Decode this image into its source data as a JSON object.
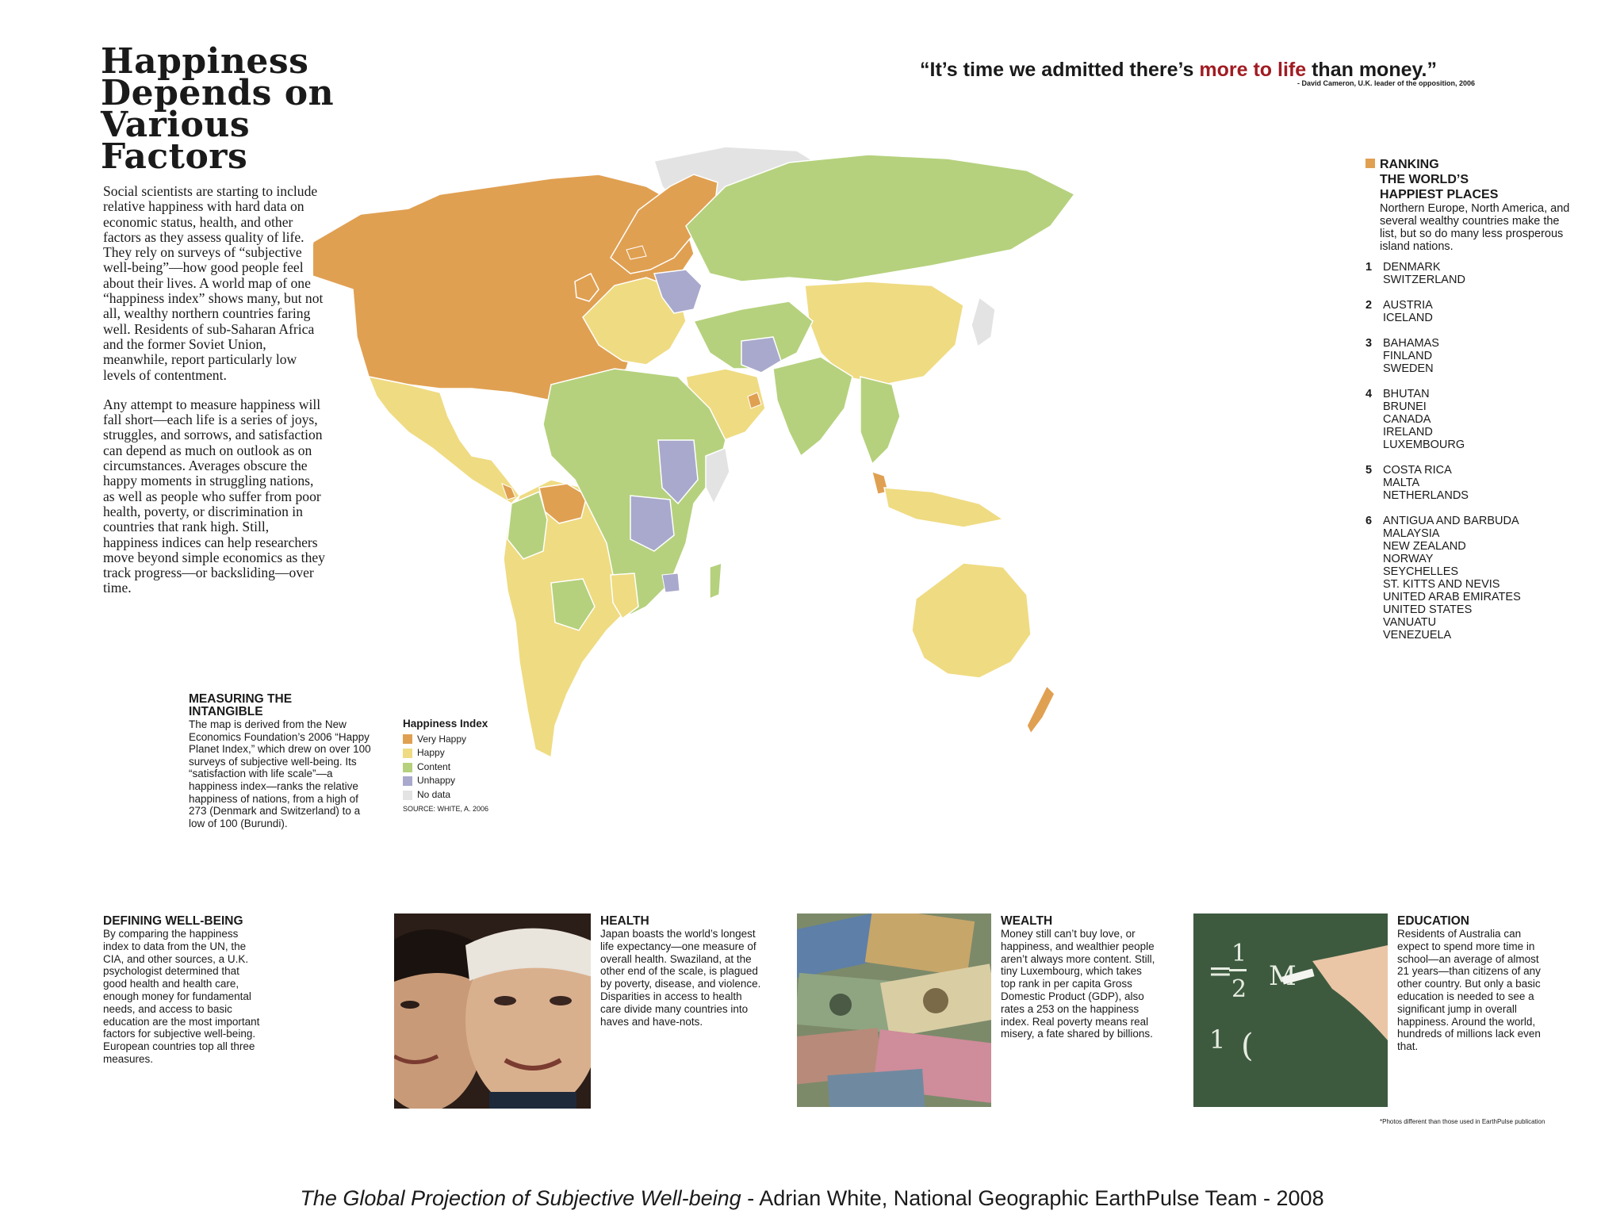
{
  "title_lines": [
    "Happiness",
    "Depends on",
    "Various",
    "Factors"
  ],
  "intro": {
    "p1": "Social scientists are starting to include relative happiness with hard data on economic status, health, and other factors as they assess quality of life. They rely on surveys of “subjective well-being”—how good people feel about their lives. A world map of one “happiness index” shows many, but not all, wealthy northern countries faring well. Residents of sub-Saharan Africa and the former Soviet Union, meanwhile, report particularly low levels of contentment.",
    "p2": "Any attempt to measure happiness will fall short—each life is a series of joys, struggles, and sorrows, and satisfaction can depend as much on outlook as on circumstances. Averages obscure the happy moments in struggling nations, as well as people who suffer from poor health, poverty, or discrimination in countries that rank high. Still, happiness indices can help researchers move beyond simple economics as they track progress—or backsliding—over time."
  },
  "quote": {
    "before": "“It’s time we admitted there’s ",
    "highlight": "more to life",
    "after": " than money.”",
    "attribution": "- David Cameron, U.K. leader of the opposition, 2006"
  },
  "ranking": {
    "heading_lines": [
      "RANKING",
      "THE WORLD’S",
      "HAPPIEST PLACES"
    ],
    "description": "Northern Europe, North America, and several wealthy countries make the list, but so do many less prosperous island nations.",
    "groups": [
      {
        "rank": "1",
        "countries": [
          "DENMARK",
          "SWITZERLAND"
        ]
      },
      {
        "rank": "2",
        "countries": [
          "AUSTRIA",
          "ICELAND"
        ]
      },
      {
        "rank": "3",
        "countries": [
          "BAHAMAS",
          "FINLAND",
          "SWEDEN"
        ]
      },
      {
        "rank": "4",
        "countries": [
          "BHUTAN",
          "BRUNEI",
          "CANADA",
          "IRELAND",
          "LUXEMBOURG"
        ]
      },
      {
        "rank": "5",
        "countries": [
          "COSTA RICA",
          "MALTA",
          "NETHERLANDS"
        ]
      },
      {
        "rank": "6",
        "countries": [
          "ANTIGUA AND BARBUDA",
          "MALAYSIA",
          "NEW ZEALAND",
          "NORWAY",
          "SEYCHELLES",
          "ST. KITTS AND NEVIS",
          "UNITED ARAB EMIRATES",
          "UNITED STATES",
          "VANUATU",
          "VENEZUELA"
        ]
      }
    ]
  },
  "measuring": {
    "heading_lines": [
      "MEASURING THE",
      "INTANGIBLE"
    ],
    "body": "The map is derived from the New Economics Foundation’s 2006 “Happy Planet Index,” which drew on over 100 surveys of subjective well-being. Its “satisfaction with life scale”—a happiness index—ranks the relative happiness of nations, from a high of 273 (Denmark and Switzerland) to a low of 100 (Burundi)."
  },
  "legend": {
    "title": "Happiness Index",
    "items": [
      {
        "label": "Very Happy",
        "color": "#e0a052"
      },
      {
        "label": "Happy",
        "color": "#efdb82"
      },
      {
        "label": "Content",
        "color": "#b5d17d"
      },
      {
        "label": "Unhappy",
        "color": "#a8a9cc"
      },
      {
        "label": "No data",
        "color": "#e3e3e3"
      }
    ],
    "source": "SOURCE: WHITE, A. 2006"
  },
  "sections": {
    "defining": {
      "heading": "DEFINING WELL-BEING",
      "body": "By comparing the happiness index to data from the UN, the CIA, and other sources, a U.K. psychologist determined that good health and health care, enough money for fundamental needs, and access to basic education are the most important factors for subjective well-being. European countries top all three measures."
    },
    "health": {
      "heading": "HEALTH",
      "body": "Japan boasts the world’s longest life expectancy—one measure of overall health. Swaziland, at the other end of the scale, is plagued by poverty, disease, and violence. Disparities in access to health care divide many countries into haves and have-nots."
    },
    "wealth": {
      "heading": "WEALTH",
      "body": "Money still can’t buy love, or happiness, and wealthier people aren’t always more content. Still, tiny Luxembourg, which takes top rank in per capita Gross Domestic Product (GDP), also rates a 253 on the happiness index. Real poverty means real misery, a fate shared by billions."
    },
    "education": {
      "heading": "EDUCATION",
      "body": "Residents of Australia can expect to spend more time in school—an average of almost 21 years—than citizens of any other country. But only a basic education is needed to see a significant jump in overall happiness. Around the world, hundreds of millions lack even that."
    }
  },
  "footnote": "*Photos different than those used in EarthPulse publication",
  "caption": {
    "italic": "The Global Projection of Subjective Well-being",
    "rest": "  - Adrian White, National Geographic EarthPulse Team - 2008"
  },
  "colors": {
    "very_happy": "#e0a052",
    "happy": "#efdb82",
    "content": "#b5d17d",
    "unhappy": "#a8a9cc",
    "no_data": "#e3e3e3",
    "quote_highlight": "#a01c22"
  }
}
